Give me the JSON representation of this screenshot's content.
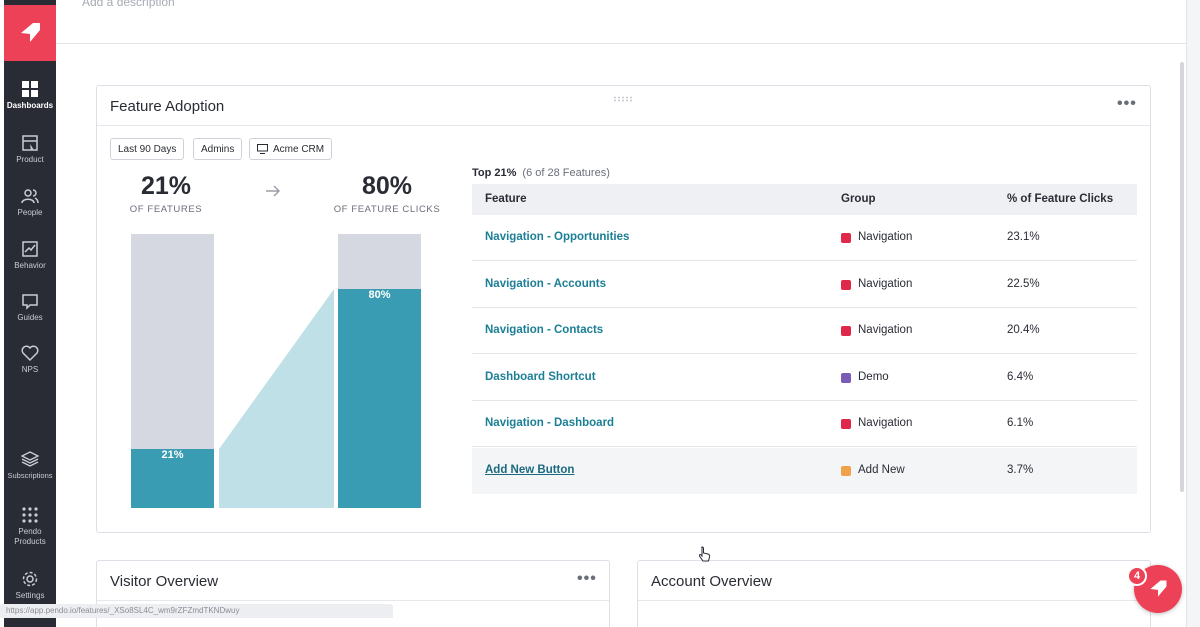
{
  "header": {
    "description_placeholder": "Add a description"
  },
  "sidebar": {
    "items": [
      {
        "label": "Dashboards",
        "icon": "grid-icon",
        "active": true
      },
      {
        "label": "Product",
        "icon": "product-icon"
      },
      {
        "label": "People",
        "icon": "people-icon"
      },
      {
        "label": "Behavior",
        "icon": "behavior-icon"
      },
      {
        "label": "Guides",
        "icon": "guides-icon"
      },
      {
        "label": "NPS",
        "icon": "heart-icon"
      },
      {
        "label": "Subscriptions",
        "icon": "layers-icon"
      },
      {
        "label": "Pendo Products",
        "icon": "apps-grid-icon"
      },
      {
        "label": "Settings",
        "icon": "gear-icon"
      }
    ]
  },
  "feature_adoption": {
    "title": "Feature Adoption",
    "filters": [
      "Last 90 Days",
      "Admins",
      "Acme CRM"
    ],
    "features_pct": "21%",
    "features_sub": "OF FEATURES",
    "clicks_pct": "80%",
    "clicks_sub": "OF FEATURE CLICKS",
    "bar_left_label": "21%",
    "bar_right_label": "80%",
    "top_label": "Top 21%",
    "top_sub": "(6 of 28 Features)",
    "columns": [
      "Feature",
      "Group",
      "% of Feature Clicks"
    ],
    "rows": [
      {
        "feature": "Navigation - Opportunities",
        "group": "Navigation",
        "clicks": "23.1%"
      },
      {
        "feature": "Navigation - Accounts",
        "group": "Navigation",
        "clicks": "22.5%"
      },
      {
        "feature": "Navigation - Contacts",
        "group": "Navigation",
        "clicks": "20.4%"
      },
      {
        "feature": "Dashboard Shortcut",
        "group": "Demo",
        "clicks": "6.4%"
      },
      {
        "feature": "Navigation - Dashboard",
        "group": "Navigation",
        "clicks": "6.1%"
      },
      {
        "feature": "Add New Button",
        "group": "Add New",
        "clicks": "3.7%"
      }
    ],
    "group_colors": {
      "Navigation": "#e0294a",
      "Demo": "#7a5bb5",
      "Add New": "#f2a14b"
    }
  },
  "visitor_overview": {
    "title": "Visitor Overview"
  },
  "account_overview": {
    "title": "Account Overview"
  },
  "notifications": {
    "count": "4"
  },
  "status_bar": {
    "url": "https://app.pendo.io/features/_XSo8SL4C_wm9rZFZmdTKNDwuy"
  },
  "colors": {
    "brand": "#ec4156",
    "teal": "#3a9cb2",
    "teal_light": "#bfe0e6",
    "bar_gray": "#d5d8e0",
    "link": "#1b7f95"
  }
}
